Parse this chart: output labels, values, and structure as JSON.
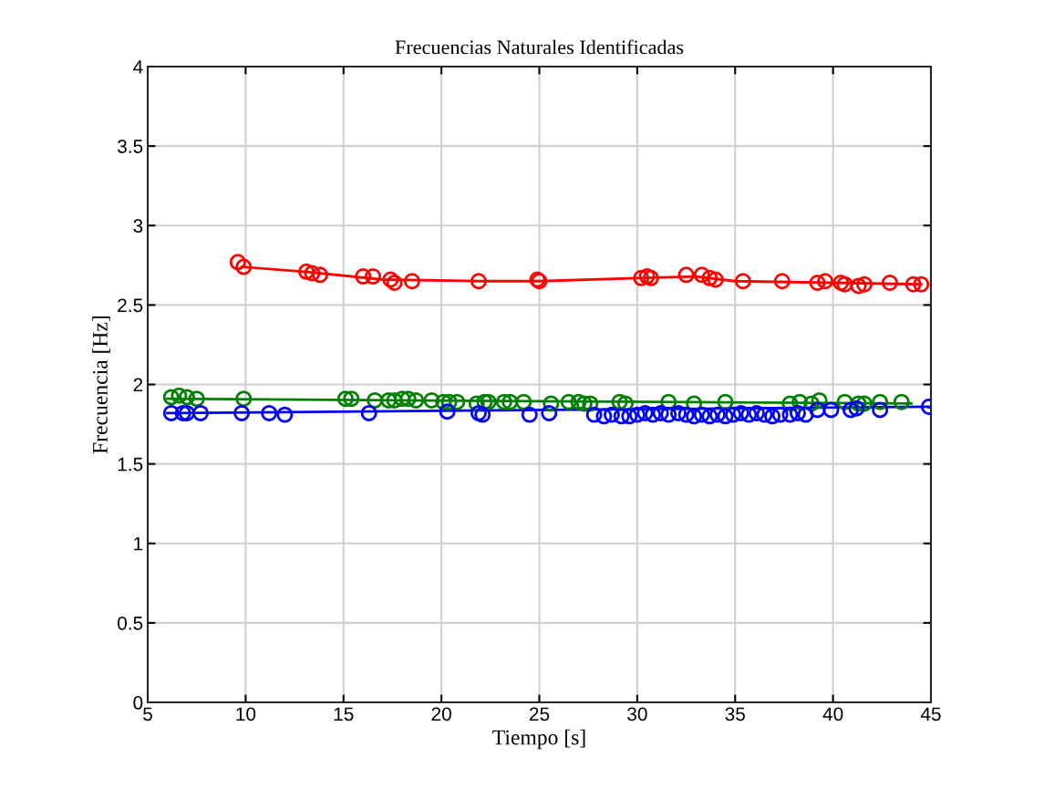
{
  "chart_data": {
    "type": "scatter",
    "title": "Frecuencias Naturales Identificadas",
    "xlabel": "Tiempo [s]",
    "ylabel": "Frecuencia [Hz]",
    "xlim": [
      5,
      45
    ],
    "xticks": [
      5,
      10,
      15,
      20,
      25,
      30,
      35,
      40,
      45
    ],
    "ylim": [
      0,
      4
    ],
    "yticks": [
      0,
      0.5,
      1,
      1.5,
      2,
      2.5,
      3,
      3.5,
      4
    ],
    "grid": true,
    "marker": "circle",
    "series": [
      {
        "type": "line",
        "color": "#ff0000",
        "marker": "none",
        "x": [
          9.8,
          13,
          17,
          22,
          25,
          30,
          33,
          35,
          40,
          44.5
        ],
        "values": [
          2.74,
          2.71,
          2.66,
          2.65,
          2.65,
          2.67,
          2.68,
          2.65,
          2.64,
          2.63
        ]
      },
      {
        "type": "line",
        "color": "#008000",
        "marker": "none",
        "x": [
          6,
          44
        ],
        "values": [
          1.91,
          1.88
        ]
      },
      {
        "type": "line",
        "color": "#0000ff",
        "marker": "none",
        "x": [
          6,
          45
        ],
        "values": [
          1.82,
          1.86
        ]
      },
      {
        "color": "#ff0000",
        "x": [
          9.6,
          9.9,
          13.1,
          13.4,
          13.8,
          16.0,
          16.5,
          17.4,
          17.6,
          18.5,
          21.9,
          24.9,
          25.0,
          30.2,
          30.5,
          30.7,
          32.5,
          33.3,
          33.7,
          34.0,
          35.4,
          37.4,
          39.2,
          39.6,
          40.4,
          40.6,
          41.3,
          41.6,
          42.9,
          44.1,
          44.5
        ],
        "values": [
          2.77,
          2.74,
          2.71,
          2.7,
          2.69,
          2.68,
          2.68,
          2.66,
          2.64,
          2.65,
          2.65,
          2.66,
          2.65,
          2.67,
          2.68,
          2.67,
          2.69,
          2.69,
          2.67,
          2.66,
          2.65,
          2.65,
          2.64,
          2.65,
          2.64,
          2.63,
          2.62,
          2.63,
          2.64,
          2.63,
          2.63
        ]
      },
      {
        "color": "#008000",
        "x": [
          6.2,
          6.6,
          7.0,
          7.5,
          9.9,
          15.1,
          15.4,
          16.6,
          17.3,
          17.6,
          18.0,
          18.3,
          18.7,
          19.5,
          20.1,
          20.4,
          20.8,
          21.8,
          22.2,
          22.4,
          23.2,
          23.5,
          24.2,
          25.6,
          26.5,
          27.0,
          27.3,
          27.6,
          29.1,
          29.4,
          31.6,
          32.9,
          34.5,
          37.8,
          38.3,
          38.6,
          38.9,
          39.3,
          40.6,
          41.3,
          41.6,
          42.4,
          43.5
        ],
        "values": [
          1.92,
          1.93,
          1.92,
          1.91,
          1.91,
          1.91,
          1.91,
          1.9,
          1.9,
          1.9,
          1.91,
          1.91,
          1.9,
          1.9,
          1.89,
          1.89,
          1.89,
          1.88,
          1.89,
          1.89,
          1.89,
          1.89,
          1.89,
          1.88,
          1.89,
          1.89,
          1.88,
          1.88,
          1.89,
          1.88,
          1.89,
          1.88,
          1.89,
          1.88,
          1.89,
          null,
          1.88,
          1.9,
          1.89,
          1.88,
          1.88,
          1.89,
          1.89
        ]
      },
      {
        "color": "#0000ff",
        "x": [
          6.2,
          6.8,
          7.0,
          7.7,
          9.8,
          11.2,
          12.0,
          16.3,
          20.3,
          21.9,
          22.1,
          24.5,
          25.5,
          27.8,
          28.3,
          28.7,
          29.2,
          29.6,
          30.0,
          30.4,
          30.8,
          31.2,
          31.6,
          32.1,
          32.5,
          32.9,
          33.3,
          33.7,
          34.1,
          34.5,
          34.9,
          35.3,
          35.7,
          36.1,
          36.5,
          36.9,
          37.3,
          37.8,
          38.2,
          38.6,
          39.2,
          39.9,
          40.9,
          41.2,
          42.4,
          44.9
        ],
        "values": [
          1.82,
          1.82,
          1.82,
          1.82,
          1.82,
          1.82,
          1.81,
          1.82,
          1.83,
          1.82,
          1.81,
          1.81,
          1.82,
          1.81,
          1.8,
          1.81,
          1.8,
          1.8,
          1.81,
          1.82,
          1.81,
          1.82,
          1.81,
          1.82,
          1.81,
          1.8,
          1.81,
          1.8,
          1.81,
          1.8,
          1.81,
          1.82,
          1.81,
          1.82,
          1.81,
          1.8,
          1.81,
          1.81,
          1.82,
          1.81,
          1.84,
          1.84,
          1.84,
          1.85,
          1.84,
          1.86
        ]
      }
    ]
  }
}
